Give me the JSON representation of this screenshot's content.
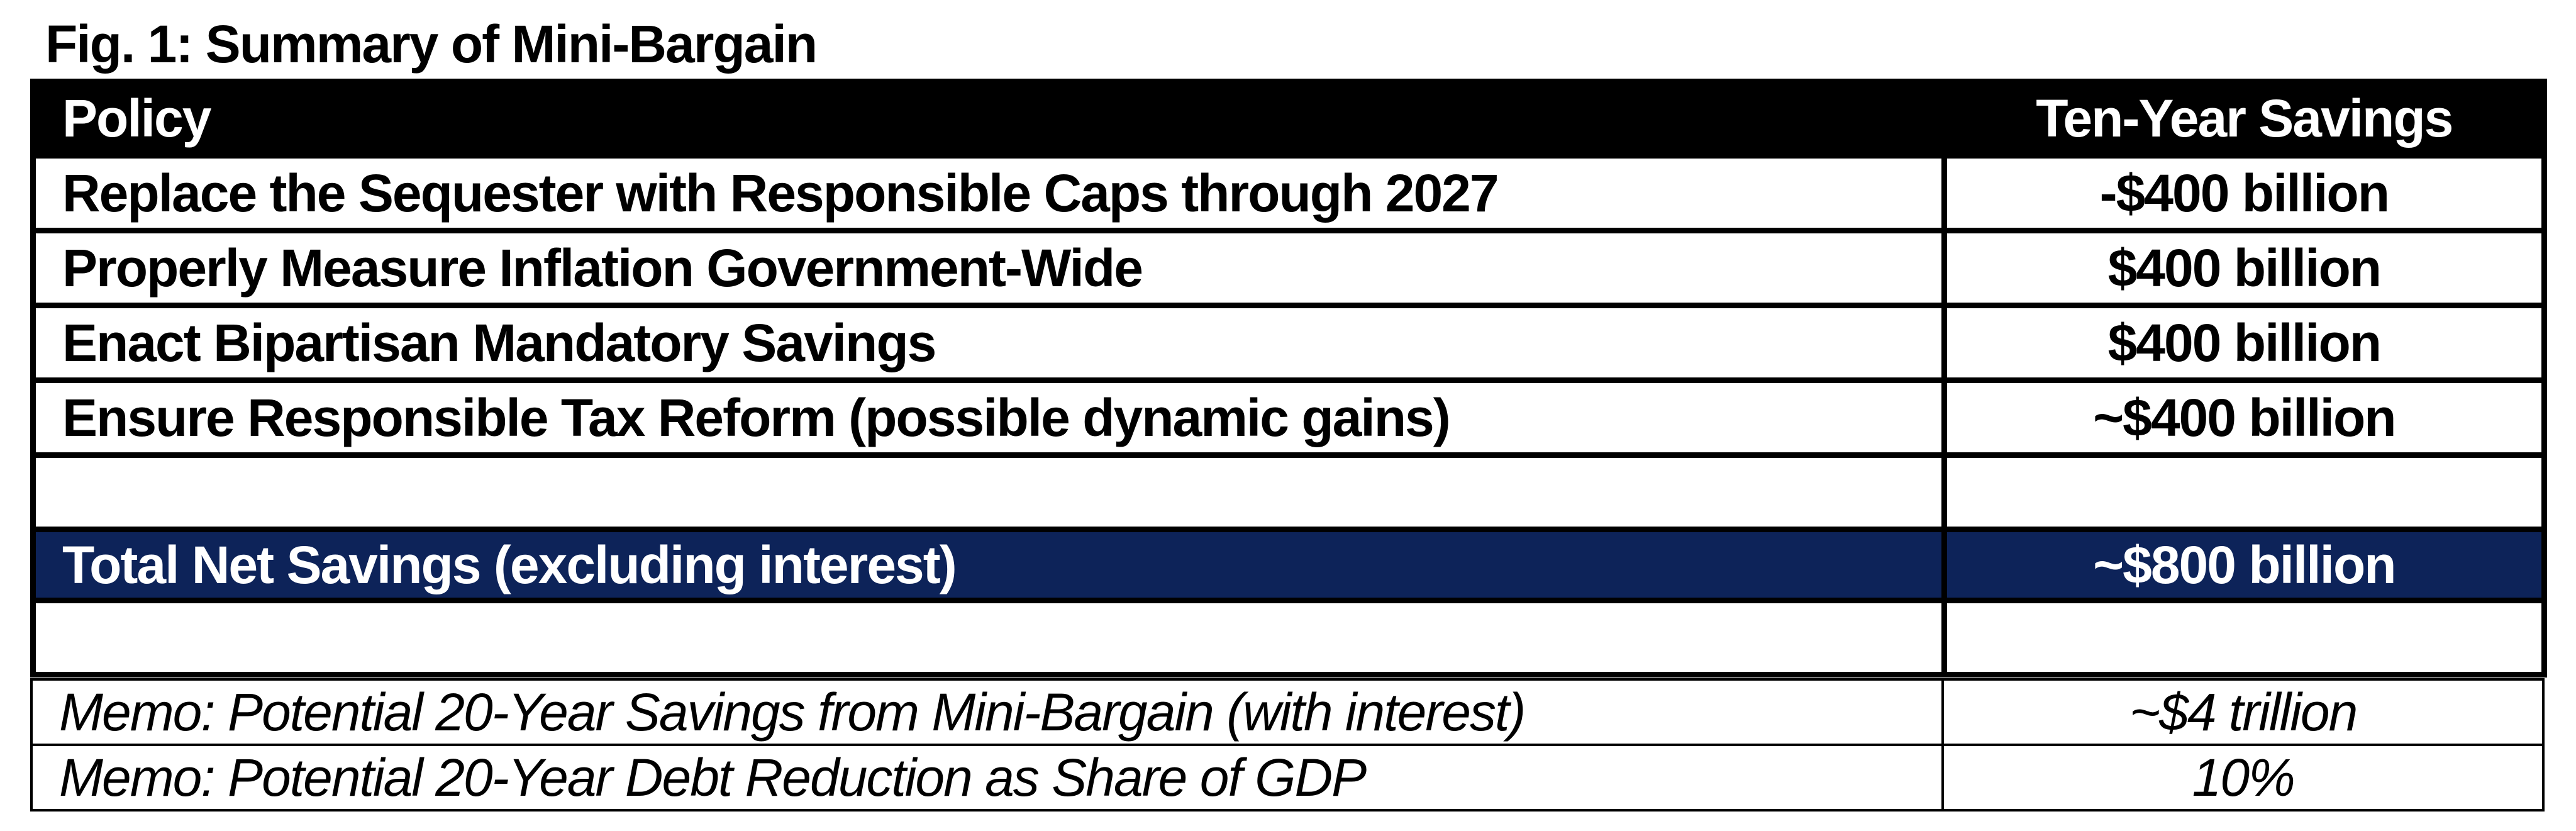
{
  "title": "Fig. 1: Summary of Mini-Bargain",
  "chart_data": {
    "type": "table",
    "title": "Fig. 1: Summary of Mini-Bargain",
    "columns": [
      "Policy",
      "Ten-Year Savings"
    ],
    "rows": [
      {
        "policy": "Replace the Sequester with Responsible Caps through 2027",
        "savings": "-$400 billion",
        "savings_billions": -400,
        "negative": true
      },
      {
        "policy": "Properly Measure Inflation Government-Wide",
        "savings": "$400 billion",
        "savings_billions": 400,
        "negative": false
      },
      {
        "policy": "Enact Bipartisan Mandatory Savings",
        "savings": "$400 billion",
        "savings_billions": 400,
        "negative": false
      },
      {
        "policy": "Ensure Responsible Tax Reform (possible dynamic gains)",
        "savings": "~$400 billion",
        "savings_billions": 400,
        "negative": false
      }
    ],
    "total": {
      "label": "Total Net Savings (excluding interest)",
      "value": "~$800 billion",
      "value_billions": 800
    },
    "memos": [
      {
        "label": "Memo: Potential 20-Year Savings from Mini-Bargain (with interest)",
        "value": "~$4 trillion"
      },
      {
        "label": "Memo: Potential 20-Year Debt Reduction as Share of GDP",
        "value": "10%"
      }
    ],
    "layout_hints": {
      "blank_row_after_policies": true,
      "blank_row_after_total": true,
      "value_column_alignment": "center"
    }
  },
  "colors": {
    "header_bg": "#000000",
    "header_text": "#FFFFFF",
    "total_bg": "#0D2359",
    "total_text": "#FFFFFF",
    "negative_value": "#B01E18",
    "border": "#000000",
    "background": "#FFFFFF"
  }
}
